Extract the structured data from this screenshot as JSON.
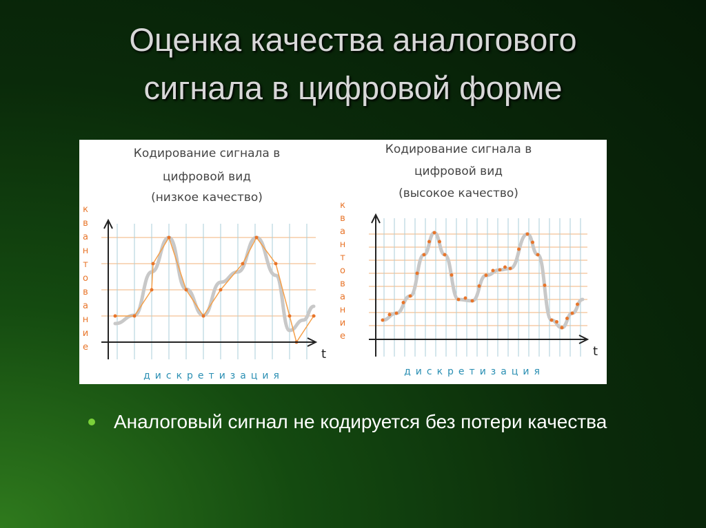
{
  "header": {
    "title": [
      "Оценка качества аналогового",
      "сигнала в цифровой форме"
    ]
  },
  "diagrams": [
    {
      "title": [
        "Кодирование сигнала в",
        "цифровой вид",
        "(низкое качество)"
      ],
      "y_label": "квантование",
      "x_label": "дискретизация",
      "axis": "t"
    },
    {
      "title": [
        "Кодирование сигнала в",
        "цифровой вид",
        "(высокое качество)"
      ],
      "y_label": "квантование",
      "x_label": "дискретизация",
      "axis": "t"
    }
  ],
  "bullets": [
    "Аналоговый сигнал не кодируется без потери качества"
  ]
}
